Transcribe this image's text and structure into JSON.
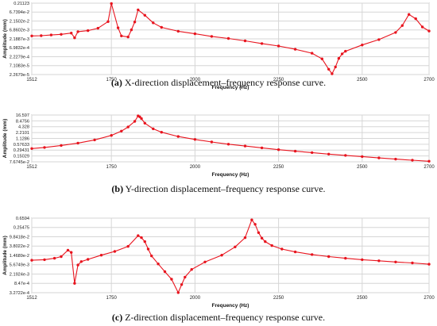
{
  "chart_data": [
    {
      "type": "line",
      "panel_label": "(a)",
      "caption": "X-direction displacement–frequency response curve.",
      "xlabel": "Frequency (Hz)",
      "ylabel": "Amplitude (mm)",
      "y_scale": "log",
      "grid": true,
      "xlim": [
        1512,
        2700
      ],
      "ylim": [
        2.2679e-05,
        0.21123
      ],
      "x_ticks": [
        1512,
        1750,
        2000,
        2250,
        2500,
        2700
      ],
      "x_tick_labels": [
        "1512",
        "1750",
        "2000",
        "2250",
        "2500",
        "2700"
      ],
      "y_ticks": [
        2.2679e-05,
        7.1083e-05,
        0.00022279,
        0.00069832,
        0.0021887,
        0.0068602,
        0.021502,
        0.067394,
        0.21123
      ],
      "y_tick_labels": [
        "2.2679e-5",
        "7.1083e-5",
        "2.2279e-4",
        "6.9832e-4",
        "2.1887e-3",
        "6.8602e-3",
        "2.1502e-2",
        "6.7394e-2",
        "0.21123"
      ],
      "series": [
        {
          "color": "#e8141e",
          "x": [
            1512,
            1540,
            1570,
            1600,
            1630,
            1640,
            1650,
            1680,
            1710,
            1740,
            1750,
            1770,
            1780,
            1800,
            1810,
            1820,
            1830,
            1850,
            1875,
            1900,
            1950,
            2000,
            2050,
            2100,
            2150,
            2200,
            2250,
            2300,
            2350,
            2380,
            2400,
            2410,
            2420,
            2430,
            2440,
            2450,
            2500,
            2550,
            2600,
            2620,
            2640,
            2660,
            2680,
            2700
          ],
          "y": [
            0.0032,
            0.0033,
            0.0036,
            0.0039,
            0.0046,
            0.0025,
            0.0055,
            0.0063,
            0.0085,
            0.02,
            0.201,
            0.009,
            0.0032,
            0.0028,
            0.007,
            0.019,
            0.09,
            0.045,
            0.017,
            0.0095,
            0.0058,
            0.0042,
            0.003,
            0.0023,
            0.0017,
            0.0012,
            0.00088,
            0.00058,
            0.00035,
            0.00017,
            4.5e-05,
            2.5e-05,
            6e-05,
            0.00018,
            0.00032,
            0.00045,
            0.001,
            0.002,
            0.005,
            0.012,
            0.05,
            0.029,
            0.01,
            0.006
          ]
        }
      ]
    },
    {
      "type": "line",
      "panel_label": "(b)",
      "caption": "Y-direction displacement–frequency response curve.",
      "xlabel": "Frequency (Hz)",
      "ylabel": "Amplitude (mm)",
      "y_scale": "log",
      "grid": true,
      "xlim": [
        1512,
        2700
      ],
      "ylim": [
        0.076745,
        16.597
      ],
      "x_ticks": [
        1512,
        1750,
        2000,
        2250,
        2500,
        2700
      ],
      "x_tick_labels": [
        "1512",
        "1750",
        "2000",
        "2250",
        "2500",
        "2700"
      ],
      "y_ticks": [
        0.076745,
        0.15029,
        0.29431,
        0.57633,
        1.1286,
        2.2101,
        4.328,
        8.4756,
        16.597
      ],
      "y_tick_labels": [
        "7.6745e-2",
        "0.15029",
        "0.29431",
        "0.57633",
        "1.1286",
        "2.2101",
        "4.328",
        "8.4756",
        "16.597"
      ],
      "series": [
        {
          "color": "#e8141e",
          "x": [
            1512,
            1550,
            1600,
            1650,
            1700,
            1750,
            1780,
            1800,
            1820,
            1830,
            1835,
            1840,
            1850,
            1875,
            1900,
            1950,
            2000,
            2050,
            2100,
            2150,
            2200,
            2250,
            2300,
            2350,
            2400,
            2450,
            2500,
            2550,
            2600,
            2650,
            2700
          ],
          "y": [
            0.35,
            0.4,
            0.5,
            0.66,
            0.95,
            1.6,
            2.6,
            4.2,
            8.0,
            15.0,
            13.5,
            11.0,
            6.5,
            3.4,
            2.3,
            1.4,
            1.0,
            0.75,
            0.58,
            0.47,
            0.38,
            0.31,
            0.26,
            0.22,
            0.185,
            0.16,
            0.14,
            0.12,
            0.105,
            0.092,
            0.082
          ]
        }
      ]
    },
    {
      "type": "line",
      "panel_label": "(c)",
      "caption": "Z-direction displacement–frequency response curve.",
      "xlabel": "Frequency (Hz)",
      "ylabel": "Amplitude (mm)",
      "y_scale": "log",
      "grid": true,
      "xlim": [
        1512,
        2700
      ],
      "ylim": [
        0.00032722,
        0.6594
      ],
      "x_ticks": [
        1512,
        1750,
        2000,
        2250,
        2500,
        2700
      ],
      "x_tick_labels": [
        "1512",
        "1750",
        "2000",
        "2250",
        "2500",
        "2700"
      ],
      "y_ticks": [
        0.00032722,
        0.000847,
        0.0021924,
        0.0056749,
        0.014689,
        0.038022,
        0.098418,
        0.25475,
        0.6594
      ],
      "y_tick_labels": [
        "3.2722e-4",
        "8.47e-4",
        "2.1924e-3",
        "5.6749e-3",
        "1.4689e-2",
        "3.8022e-2",
        "9.8418e-2",
        "0.25475",
        "0.6594"
      ],
      "series": [
        {
          "color": "#e8141e",
          "x": [
            1512,
            1550,
            1580,
            1600,
            1620,
            1630,
            1640,
            1650,
            1660,
            1680,
            1720,
            1760,
            1800,
            1830,
            1840,
            1850,
            1860,
            1870,
            1890,
            1910,
            1930,
            1950,
            1960,
            1970,
            1990,
            2030,
            2080,
            2120,
            2150,
            2170,
            2180,
            2190,
            2200,
            2210,
            2230,
            2260,
            2300,
            2350,
            2400,
            2450,
            2500,
            2550,
            2600,
            2650,
            2700
          ],
          "y": [
            0.009,
            0.0095,
            0.011,
            0.013,
            0.025,
            0.02,
            0.00085,
            0.0055,
            0.0078,
            0.0098,
            0.015,
            0.022,
            0.037,
            0.11,
            0.09,
            0.06,
            0.028,
            0.014,
            0.0062,
            0.0028,
            0.0013,
            0.00033,
            0.00075,
            0.0016,
            0.0035,
            0.0075,
            0.015,
            0.035,
            0.09,
            0.55,
            0.35,
            0.15,
            0.085,
            0.06,
            0.04,
            0.028,
            0.021,
            0.016,
            0.013,
            0.011,
            0.0095,
            0.0085,
            0.0075,
            0.0068,
            0.006
          ]
        }
      ]
    }
  ]
}
